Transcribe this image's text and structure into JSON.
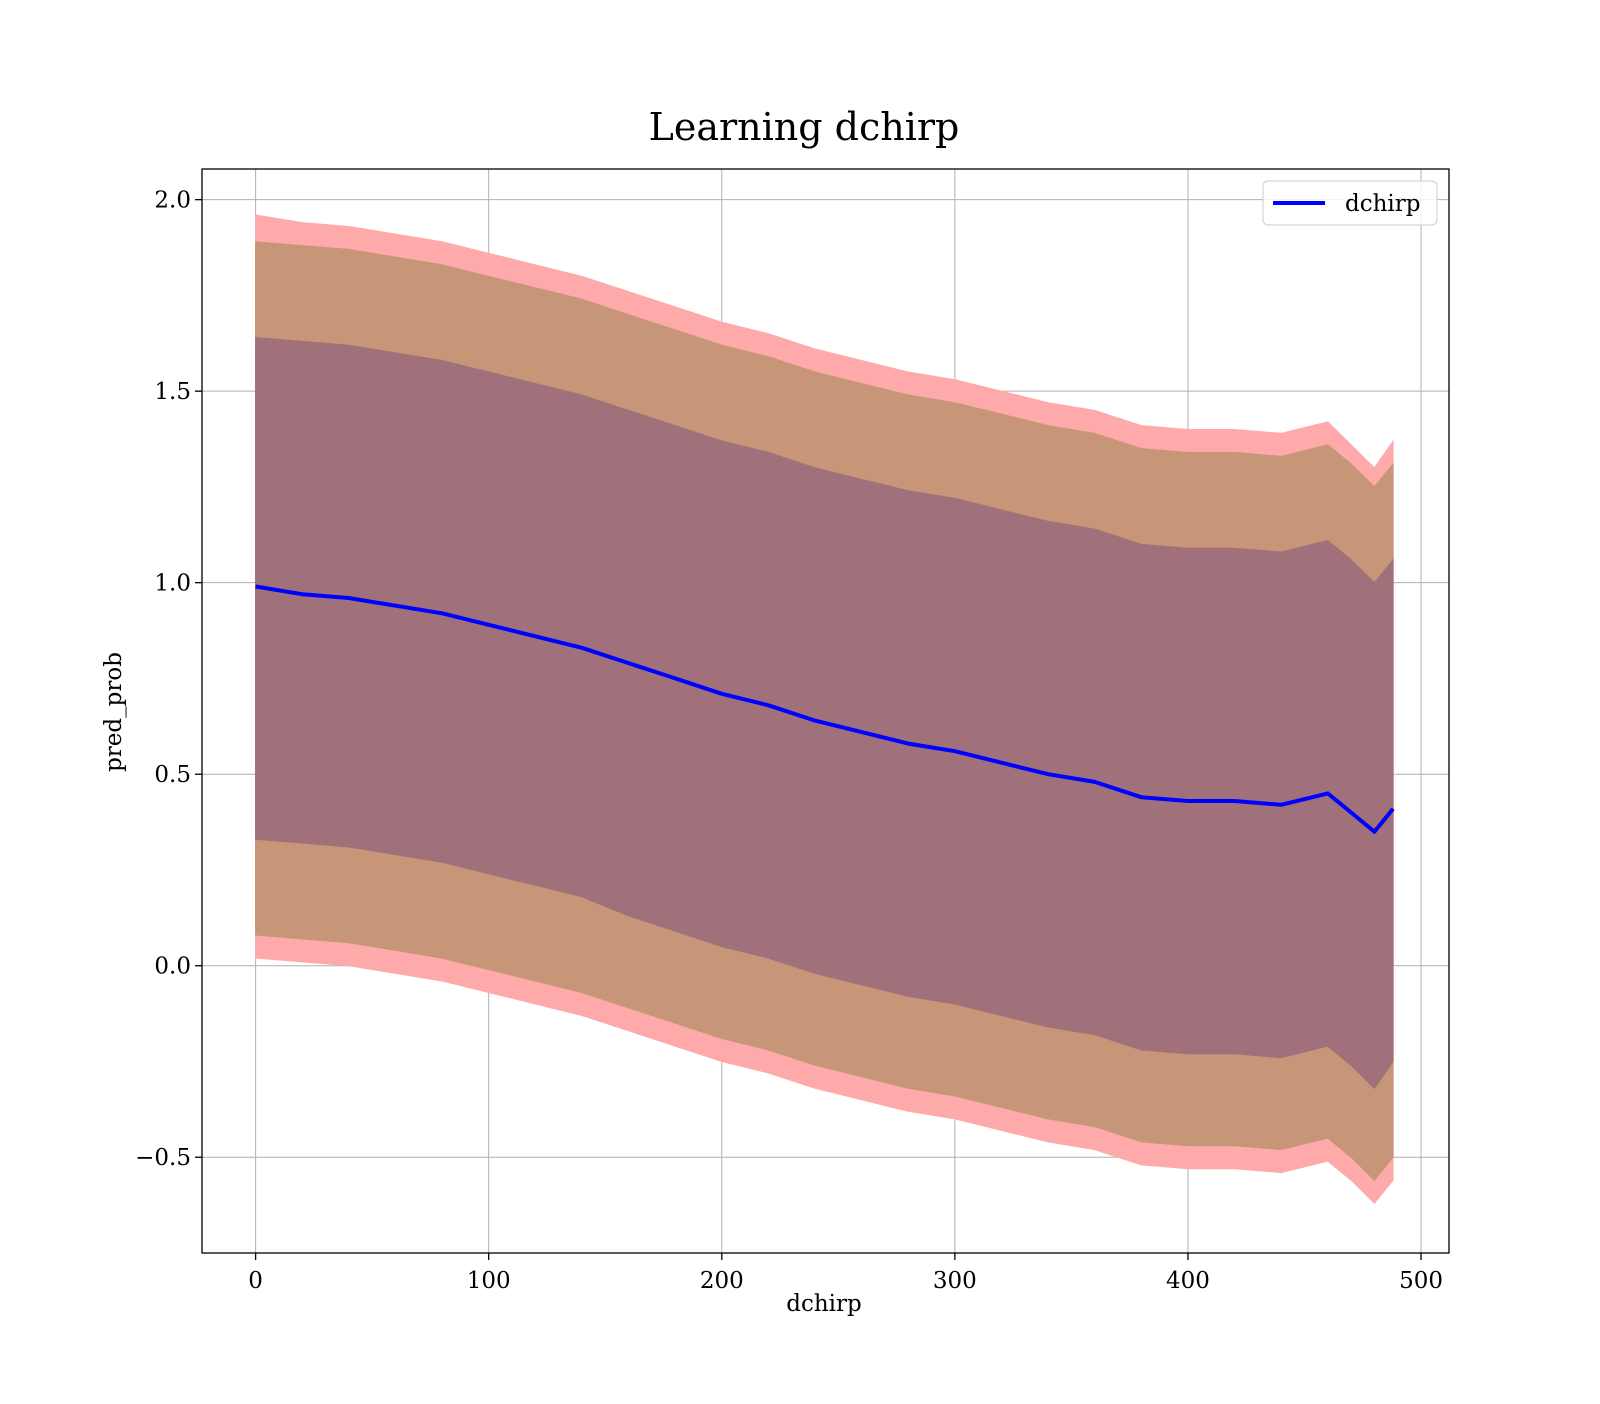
{
  "chart_data": {
    "type": "line",
    "title": "Learning dchirp",
    "xlabel": "dchirp",
    "ylabel": "pred_prob",
    "xlim": [
      -23,
      512
    ],
    "ylim": [
      -0.75,
      2.08
    ],
    "x_ticks": [
      0,
      100,
      200,
      300,
      400,
      500
    ],
    "x_tick_labels": [
      "0",
      "100",
      "200",
      "300",
      "400",
      "500"
    ],
    "y_ticks": [
      -0.5,
      0.0,
      0.5,
      1.0,
      1.5,
      2.0
    ],
    "y_tick_labels": [
      "−0.5",
      "0.0",
      "0.5",
      "1.0",
      "1.5",
      "2.0"
    ],
    "grid": true,
    "legend_position": "top-right",
    "legend": [
      {
        "label": "dchirp",
        "color": "#0000ff"
      }
    ],
    "series": [
      {
        "name": "dchirp",
        "color": "#0000ff",
        "x": [
          0,
          20,
          40,
          60,
          80,
          100,
          120,
          140,
          160,
          180,
          200,
          220,
          240,
          260,
          280,
          300,
          320,
          340,
          360,
          380,
          400,
          420,
          440,
          460,
          470,
          480,
          488
        ],
        "y": [
          0.99,
          0.97,
          0.96,
          0.94,
          0.92,
          0.89,
          0.86,
          0.83,
          0.79,
          0.75,
          0.71,
          0.68,
          0.64,
          0.61,
          0.58,
          0.56,
          0.53,
          0.5,
          0.48,
          0.44,
          0.43,
          0.43,
          0.42,
          0.45,
          0.4,
          0.35,
          0.41
        ]
      }
    ],
    "bands": [
      {
        "level": "inner",
        "color": "#a0717a",
        "x": [
          0,
          20,
          40,
          60,
          80,
          100,
          120,
          140,
          160,
          180,
          200,
          220,
          240,
          260,
          280,
          300,
          320,
          340,
          360,
          380,
          400,
          420,
          440,
          460,
          470,
          480,
          488
        ],
        "upper": [
          1.64,
          1.63,
          1.62,
          1.6,
          1.58,
          1.55,
          1.52,
          1.49,
          1.45,
          1.41,
          1.37,
          1.34,
          1.3,
          1.27,
          1.24,
          1.22,
          1.19,
          1.16,
          1.14,
          1.1,
          1.09,
          1.09,
          1.08,
          1.11,
          1.06,
          1.0,
          1.06
        ],
        "lower": [
          0.33,
          0.32,
          0.31,
          0.29,
          0.27,
          0.24,
          0.21,
          0.18,
          0.13,
          0.09,
          0.05,
          0.02,
          -0.02,
          -0.05,
          -0.08,
          -0.1,
          -0.13,
          -0.16,
          -0.18,
          -0.22,
          -0.23,
          -0.23,
          -0.24,
          -0.21,
          -0.26,
          -0.32,
          -0.25
        ]
      },
      {
        "level": "middle",
        "color": "#c79678",
        "x": [
          0,
          20,
          40,
          60,
          80,
          100,
          120,
          140,
          160,
          180,
          200,
          220,
          240,
          260,
          280,
          300,
          320,
          340,
          360,
          380,
          400,
          420,
          440,
          460,
          470,
          480,
          488
        ],
        "upper": [
          1.89,
          1.88,
          1.87,
          1.85,
          1.83,
          1.8,
          1.77,
          1.74,
          1.7,
          1.66,
          1.62,
          1.59,
          1.55,
          1.52,
          1.49,
          1.47,
          1.44,
          1.41,
          1.39,
          1.35,
          1.34,
          1.34,
          1.33,
          1.36,
          1.31,
          1.25,
          1.31
        ],
        "lower": [
          0.08,
          0.07,
          0.06,
          0.04,
          0.02,
          -0.01,
          -0.04,
          -0.07,
          -0.11,
          -0.15,
          -0.19,
          -0.22,
          -0.26,
          -0.29,
          -0.32,
          -0.34,
          -0.37,
          -0.4,
          -0.42,
          -0.46,
          -0.47,
          -0.47,
          -0.48,
          -0.45,
          -0.5,
          -0.56,
          -0.5
        ]
      },
      {
        "level": "outer",
        "color": "#ffaaaa",
        "x": [
          0,
          20,
          40,
          60,
          80,
          100,
          120,
          140,
          160,
          180,
          200,
          220,
          240,
          260,
          280,
          300,
          320,
          340,
          360,
          380,
          400,
          420,
          440,
          460,
          470,
          480,
          488
        ],
        "upper": [
          1.96,
          1.94,
          1.93,
          1.91,
          1.89,
          1.86,
          1.83,
          1.8,
          1.76,
          1.72,
          1.68,
          1.65,
          1.61,
          1.58,
          1.55,
          1.53,
          1.5,
          1.47,
          1.45,
          1.41,
          1.4,
          1.4,
          1.39,
          1.42,
          1.36,
          1.3,
          1.37
        ],
        "lower": [
          0.02,
          0.01,
          0.0,
          -0.02,
          -0.04,
          -0.07,
          -0.1,
          -0.13,
          -0.17,
          -0.21,
          -0.25,
          -0.28,
          -0.32,
          -0.35,
          -0.38,
          -0.4,
          -0.43,
          -0.46,
          -0.48,
          -0.52,
          -0.53,
          -0.53,
          -0.54,
          -0.51,
          -0.56,
          -0.62,
          -0.56
        ]
      }
    ]
  }
}
